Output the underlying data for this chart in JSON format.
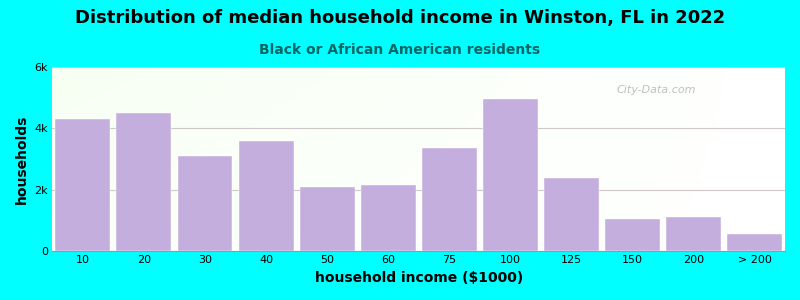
{
  "title": "Distribution of median household income in Winston, FL in 2022",
  "subtitle": "Black or African American residents",
  "xlabel": "household income ($1000)",
  "ylabel": "households",
  "background_color": "#00FFFF",
  "bar_color": "#C4AEDD",
  "categories": [
    "10",
    "20",
    "30",
    "40",
    "50",
    "60",
    "75",
    "100",
    "125",
    "150",
    "200",
    "> 200"
  ],
  "values": [
    4300,
    4500,
    3100,
    3600,
    2100,
    2150,
    3350,
    4950,
    2400,
    1050,
    1100,
    550
  ],
  "ylim": [
    0,
    6000
  ],
  "yticks": [
    0,
    2000,
    4000,
    6000
  ],
  "ytick_labels": [
    "0",
    "2k",
    "4k",
    "6k"
  ],
  "title_fontsize": 13,
  "subtitle_fontsize": 10,
  "label_fontsize": 10,
  "tick_fontsize": 8,
  "watermark": "City-Data.com"
}
